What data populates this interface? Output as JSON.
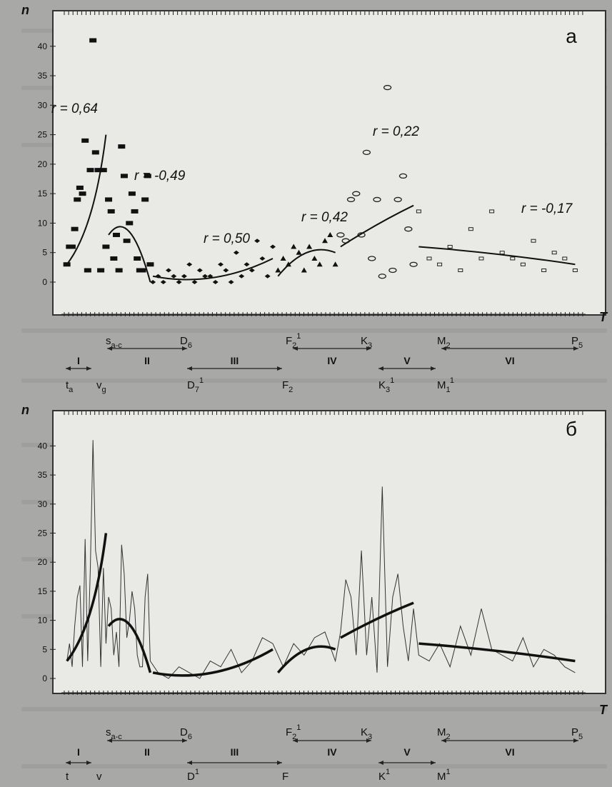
{
  "chart_data": [
    {
      "panel": "a",
      "type": "scatter",
      "ylabel": "n",
      "xlabel": "T",
      "ylim": [
        0,
        43
      ],
      "yticks": [
        0,
        5,
        10,
        15,
        20,
        25,
        30,
        35,
        40
      ],
      "annotations": [
        "r = 0,64",
        "r = -0,49",
        "r = 0,50",
        "r = 0,42",
        "r = 0,22",
        "r = -0,17"
      ],
      "series": [
        {
          "marker": "square",
          "x": [
            1,
            2,
            3,
            4,
            5,
            6,
            7,
            8,
            9,
            10,
            11,
            12,
            13,
            14,
            15,
            16
          ],
          "y": [
            3,
            6,
            6,
            9,
            14,
            16,
            15,
            24,
            2,
            19,
            41,
            22,
            19,
            2,
            19,
            6
          ]
        },
        {
          "marker": "square",
          "x": [
            17,
            18,
            19,
            20,
            21,
            22,
            23,
            24,
            25,
            26,
            27,
            28,
            29,
            30,
            31,
            32,
            33
          ],
          "y": [
            14,
            12,
            4,
            8,
            2,
            23,
            18,
            7,
            10,
            15,
            12,
            4,
            2,
            2,
            14,
            18,
            3
          ]
        },
        {
          "marker": "diamond",
          "x": [
            34,
            36,
            38,
            40,
            42,
            44,
            46,
            48,
            50,
            52,
            54,
            56,
            58,
            60,
            62,
            64,
            66,
            68,
            70,
            72,
            74,
            76,
            78,
            80
          ],
          "y": [
            0,
            1,
            0,
            2,
            1,
            0,
            1,
            3,
            0,
            2,
            1,
            1,
            0,
            3,
            2,
            0,
            5,
            1,
            3,
            2,
            7,
            4,
            1,
            6
          ]
        },
        {
          "marker": "triangle",
          "x": [
            82,
            84,
            86,
            88,
            90,
            92,
            94,
            96,
            98,
            100,
            102,
            104
          ],
          "y": [
            2,
            4,
            3,
            6,
            5,
            2,
            6,
            4,
            3,
            7,
            8,
            3
          ]
        },
        {
          "marker": "circle",
          "x": [
            106,
            108,
            110,
            112,
            114,
            116,
            118,
            120,
            122,
            124,
            126,
            128,
            130,
            132,
            134
          ],
          "y": [
            8,
            7,
            14,
            15,
            8,
            22,
            4,
            14,
            1,
            33,
            2,
            14,
            18,
            9,
            3
          ]
        },
        {
          "marker": "small",
          "x": [
            136,
            140,
            144,
            148,
            152,
            156,
            160,
            164,
            168,
            172,
            176,
            180,
            184,
            188,
            192,
            196
          ],
          "y": [
            12,
            4,
            3,
            6,
            2,
            9,
            4,
            12,
            5,
            4,
            3,
            7,
            2,
            5,
            4,
            2
          ]
        }
      ],
      "trends": [
        {
          "x": [
            1,
            16
          ],
          "y": [
            3,
            25
          ]
        },
        {
          "x": [
            17,
            33
          ],
          "y": [
            8,
            0
          ]
        },
        {
          "x": [
            34,
            80
          ],
          "y": [
            1,
            4
          ]
        },
        {
          "x": [
            82,
            104
          ],
          "y": [
            1,
            5
          ]
        },
        {
          "x": [
            106,
            134
          ],
          "y": [
            6,
            13
          ]
        },
        {
          "x": [
            136,
            196
          ],
          "y": [
            6,
            3
          ]
        }
      ],
      "periods_top": [
        {
          "label": "s",
          "sub": "a-c",
          "sup": ""
        },
        {
          "label": "D",
          "sub": "6",
          "sup": ""
        },
        {
          "label": "F",
          "sub": "2",
          "sup": "1"
        },
        {
          "label": "K",
          "sub": "3",
          "sup": ""
        },
        {
          "label": "M",
          "sub": "2",
          "sup": ""
        },
        {
          "label": "P",
          "sub": "5",
          "sup": ""
        }
      ],
      "periods_bottom": [
        {
          "label": "t",
          "sub": "a",
          "sup": ""
        },
        {
          "label": "v",
          "sub": "g",
          "sup": ""
        },
        {
          "label": "D",
          "sub": "7",
          "sup": "1"
        },
        {
          "label": "F",
          "sub": "2",
          "sup": ""
        },
        {
          "label": "K",
          "sub": "3",
          "sup": "1"
        },
        {
          "label": "M",
          "sub": "1",
          "sup": "1"
        }
      ],
      "roman": [
        "I",
        "II",
        "III",
        "IV",
        "V",
        "VI"
      ],
      "letter": "a"
    },
    {
      "panel": "б",
      "type": "line",
      "ylabel": "n",
      "xlabel": "T",
      "ylim": [
        0,
        43
      ],
      "yticks": [
        0,
        5,
        10,
        15,
        20,
        25,
        30,
        35,
        40
      ],
      "series": [
        {
          "x": [
            1,
            2,
            3,
            4,
            5,
            6,
            7,
            8,
            9,
            10,
            11,
            12,
            13,
            14,
            15,
            16,
            17,
            18,
            19,
            20,
            21,
            22,
            23,
            24,
            25,
            26,
            27,
            28,
            29,
            30,
            31,
            32,
            33,
            36,
            40,
            44,
            48,
            52,
            56,
            60,
            64,
            68,
            72,
            76,
            80,
            84,
            88,
            92,
            96,
            100,
            104,
            106,
            108,
            110,
            112,
            114,
            116,
            118,
            120,
            122,
            124,
            126,
            128,
            130,
            132,
            134,
            136,
            140,
            144,
            148,
            152,
            156,
            160,
            164,
            168,
            172,
            176,
            180,
            184,
            188,
            192,
            196
          ],
          "y": [
            3,
            6,
            2,
            9,
            14,
            16,
            2,
            24,
            3,
            19,
            41,
            22,
            19,
            2,
            19,
            6,
            14,
            12,
            4,
            8,
            2,
            23,
            18,
            7,
            10,
            15,
            12,
            4,
            2,
            2,
            14,
            18,
            3,
            1,
            0,
            2,
            1,
            0,
            3,
            2,
            5,
            1,
            3,
            7,
            6,
            2,
            6,
            4,
            7,
            8,
            3,
            8,
            17,
            14,
            4,
            22,
            4,
            14,
            1,
            33,
            2,
            14,
            18,
            9,
            3,
            12,
            4,
            3,
            6,
            2,
            9,
            4,
            12,
            5,
            4,
            3,
            7,
            2,
            5,
            4,
            2,
            1
          ]
        }
      ],
      "trends": [
        {
          "x": [
            1,
            16
          ],
          "y": [
            3,
            25
          ]
        },
        {
          "x": [
            17,
            33
          ],
          "y": [
            9,
            1
          ]
        },
        {
          "x": [
            34,
            80
          ],
          "y": [
            1,
            5
          ]
        },
        {
          "x": [
            82,
            104
          ],
          "y": [
            1,
            5
          ]
        },
        {
          "x": [
            106,
            134
          ],
          "y": [
            7,
            13
          ]
        },
        {
          "x": [
            136,
            196
          ],
          "y": [
            6,
            3
          ]
        }
      ],
      "periods_top": [
        {
          "label": "s",
          "sub": "a-c",
          "sup": ""
        },
        {
          "label": "D",
          "sub": "6",
          "sup": ""
        },
        {
          "label": "F",
          "sub": "2",
          "sup": "1"
        },
        {
          "label": "K",
          "sub": "3",
          "sup": ""
        },
        {
          "label": "M",
          "sub": "2",
          "sup": ""
        },
        {
          "label": "P",
          "sub": "5",
          "sup": ""
        }
      ],
      "periods_bottom": [
        {
          "label": "t",
          "sub": "",
          "sup": ""
        },
        {
          "label": "v",
          "sub": "",
          "sup": ""
        },
        {
          "label": "D",
          "sub": "",
          "sup": "1"
        },
        {
          "label": "F",
          "sub": "",
          "sup": ""
        },
        {
          "label": "K",
          "sub": "",
          "sup": "1"
        },
        {
          "label": "M",
          "sub": "",
          "sup": "1"
        }
      ],
      "roman": [
        "I",
        "II",
        "III",
        "IV",
        "V",
        "VI"
      ],
      "letter": "б"
    }
  ]
}
